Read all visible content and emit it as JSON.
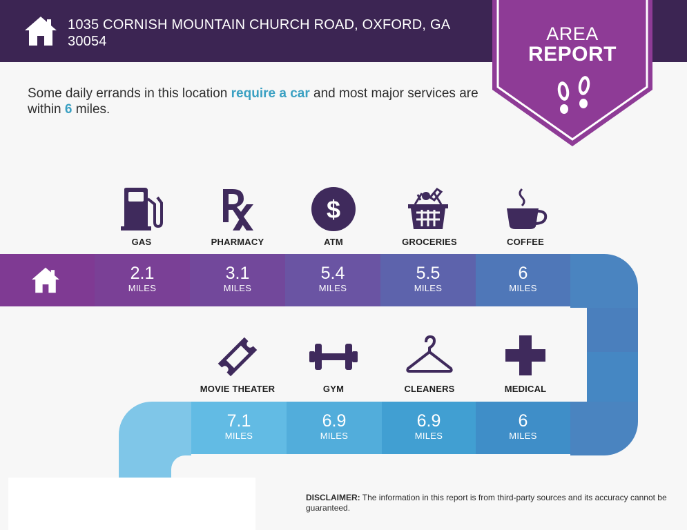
{
  "header": {
    "address_line1": "1035 CORNISH MOUNTAIN CHURCH ROAD, OXFORD, GA",
    "address_line2": "30054",
    "icon": "home-icon"
  },
  "badge": {
    "line1": "AREA",
    "line2": "REPORT",
    "icon": "footprints-icon",
    "color": "#8e3b96"
  },
  "summary": {
    "part1": "Some daily errands in this location ",
    "highlight1": "require a car",
    "part2": " and most major services are within ",
    "highlight2": "6",
    "part3": " miles."
  },
  "row1": [
    {
      "label": "GAS",
      "value": "2.1",
      "unit": "MILES",
      "icon": "gas-pump-icon"
    },
    {
      "label": "PHARMACY",
      "value": "3.1",
      "unit": "MILES",
      "icon": "rx-icon"
    },
    {
      "label": "ATM",
      "value": "5.4",
      "unit": "MILES",
      "icon": "dollar-coin-icon"
    },
    {
      "label": "GROCERIES",
      "value": "5.5",
      "unit": "MILES",
      "icon": "basket-icon"
    },
    {
      "label": "COFFEE",
      "value": "6",
      "unit": "MILES",
      "icon": "coffee-cup-icon"
    }
  ],
  "row2": [
    {
      "label": "MOVIE THEATER",
      "value": "7.1",
      "unit": "MILES",
      "icon": "ticket-icon"
    },
    {
      "label": "GYM",
      "value": "6.9",
      "unit": "MILES",
      "icon": "dumbbell-icon"
    },
    {
      "label": "CLEANERS",
      "value": "6.9",
      "unit": "MILES",
      "icon": "hanger-icon"
    },
    {
      "label": "MEDICAL",
      "value": "6",
      "unit": "MILES",
      "icon": "medical-cross-icon"
    }
  ],
  "disclaimer": {
    "title": "DISCLAIMER:",
    "text": " The information in this report is from third-party sources and its accuracy cannot be guaranteed."
  },
  "colors": {
    "header_bg": "#3c2553",
    "icon_dark": "#3f2a5c",
    "highlight": "#3aa0c2",
    "row1": [
      "#7f3a93",
      "#7a4096",
      "#72489b",
      "#6a54a3",
      "#5d63ac",
      "#4f77b8"
    ],
    "row2": [
      "#62bbe4",
      "#52addb",
      "#419fd2",
      "#3f8ec8"
    ],
    "path_blue": "#4a84c0",
    "path_light": "#7fc6e8"
  }
}
